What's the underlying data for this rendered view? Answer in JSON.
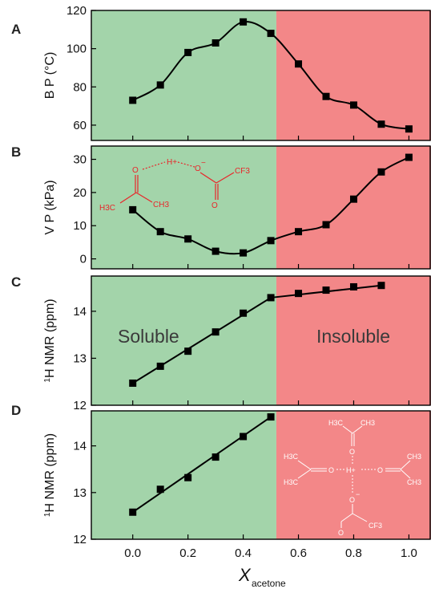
{
  "colors": {
    "soluble_region": "#a3d4aa",
    "insoluble_region": "#f38788",
    "marker": "#000000",
    "molecule_red": "#e8262a",
    "molecule_white": "#ffffff"
  },
  "xaxis": {
    "label_main": "X",
    "label_sub": "acetone",
    "ticks": [
      0.0,
      0.2,
      0.4,
      0.6,
      0.8,
      1.0
    ],
    "tick_labels": [
      "0.0",
      "0.2",
      "0.4",
      "0.6",
      "0.8",
      "1.0"
    ],
    "range": [
      -0.15,
      1.08
    ],
    "region_boundary": 0.52
  },
  "regions": {
    "left": "Soluble",
    "right": "Insoluble"
  },
  "molecule_b": {
    "o1": "O",
    "hplus": "H+",
    "o2": "O",
    "minus": "−",
    "cf3": "CF3",
    "h3c": "H3C",
    "ch3": "CH3",
    "o3": "O"
  },
  "molecule_d": {
    "top_h3c": "H3C",
    "top_ch3": "CH3",
    "top_o": "O",
    "left_h3c_1": "H3C",
    "left_h3c_2": "H3C",
    "left_o": "O",
    "hplus": "H+",
    "right_o": "O",
    "right_ch3_1": "CH3",
    "right_ch3_2": "CH3",
    "bottom_o": "O",
    "minus": "−",
    "bottom_o2": "O",
    "cf3": "CF3"
  },
  "chart_data": [
    {
      "panel": "A",
      "type": "scatter",
      "ylabel": "B P (°C)",
      "ylim": [
        52,
        120
      ],
      "yticks": [
        60,
        80,
        100,
        120
      ],
      "x": [
        0.0,
        0.1,
        0.2,
        0.3,
        0.4,
        0.5,
        0.6,
        0.7,
        0.8,
        0.9,
        1.0
      ],
      "y": [
        73,
        81,
        98,
        103,
        114,
        108,
        92,
        75,
        70.5,
        60.5,
        58
      ],
      "fit": "smooth curve through points"
    },
    {
      "panel": "B",
      "type": "scatter",
      "ylabel": "V P (kPa)",
      "ylim": [
        -3,
        34
      ],
      "yticks": [
        0,
        10,
        20,
        30
      ],
      "x": [
        0.0,
        0.1,
        0.2,
        0.3,
        0.4,
        0.5,
        0.6,
        0.7,
        0.8,
        0.9,
        1.0
      ],
      "y": [
        14.8,
        8.2,
        6.0,
        2.3,
        1.8,
        5.5,
        8.2,
        10.3,
        18.0,
        26.2,
        30.6
      ],
      "fit": "smooth curve through points"
    },
    {
      "panel": "C",
      "type": "scatter",
      "ylabel": "1H NMR (ppm)",
      "ylabel_sup": "1",
      "ylabel_rest": "H NMR (ppm)",
      "ylim": [
        12.0,
        14.75
      ],
      "yticks": [
        12,
        13,
        14
      ],
      "x": [
        0.0,
        0.1,
        0.2,
        0.3,
        0.4,
        0.5,
        0.6,
        0.7,
        0.8,
        0.9
      ],
      "y": [
        12.47,
        12.83,
        13.15,
        13.56,
        13.96,
        14.29,
        14.38,
        14.45,
        14.52,
        14.55
      ],
      "fit": "two linear segments"
    },
    {
      "panel": "D",
      "type": "scatter",
      "ylabel": "1H NMR (ppm)",
      "ylabel_sup": "1",
      "ylabel_rest": "H NMR (ppm)",
      "ylim": [
        12.0,
        14.75
      ],
      "yticks": [
        12,
        13,
        14
      ],
      "x": [
        0.0,
        0.1,
        0.2,
        0.3,
        0.4,
        0.5
      ],
      "y": [
        12.58,
        13.07,
        13.32,
        13.76,
        14.2,
        14.62
      ],
      "fit": "linear"
    }
  ]
}
